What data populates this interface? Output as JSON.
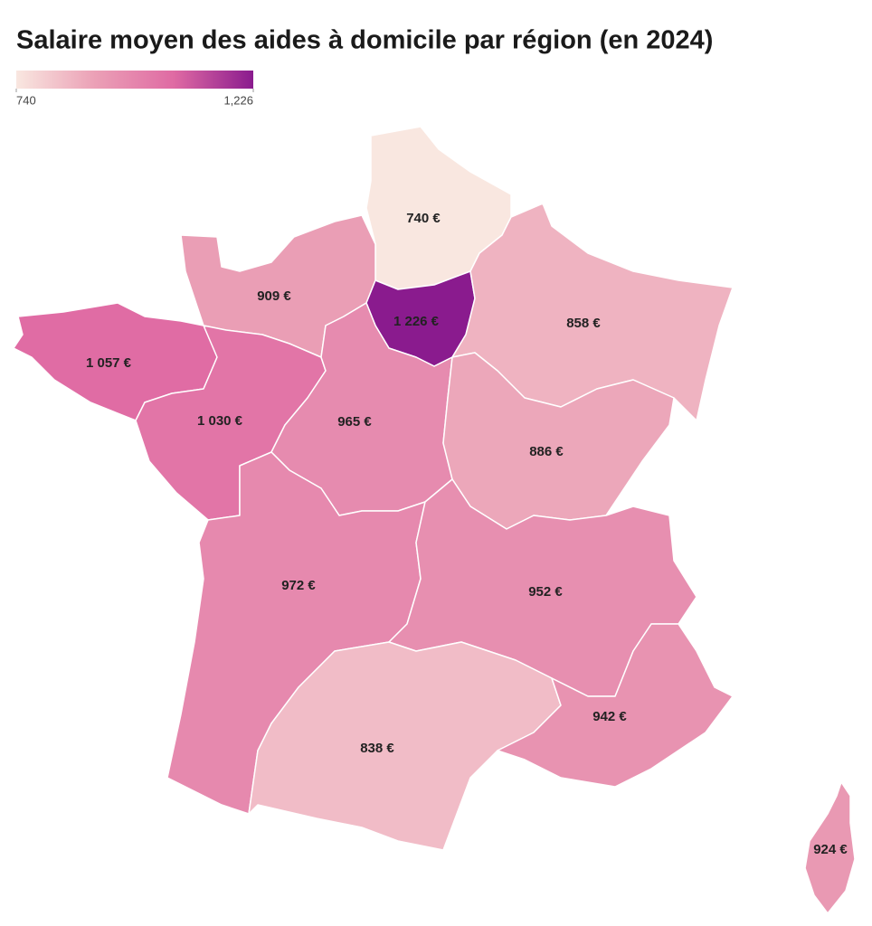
{
  "chart_data": {
    "type": "choropleth",
    "title": "Salaire moyen des aides à domicile par région (en 2024)",
    "colors": [
      "#f9e7e0",
      "#eba0b6",
      "#df6aa3",
      "#8a1b8e"
    ],
    "legend_range": [
      740,
      1226
    ],
    "legend_ticks": [
      740,
      {
        "value": 1226,
        "label": "1,226"
      }
    ],
    "values": [
      740,
      909,
      1226,
      858,
      1057,
      1030,
      965,
      886,
      972,
      952,
      838,
      942,
      924
    ],
    "value_labels": [
      "740 €",
      "909 €",
      "1 226 €",
      "858 €",
      "1 057 €",
      "1 030 €",
      "965 €",
      "886 €",
      "972 €",
      "952 €",
      "838 €",
      "942 €",
      "924 €"
    ]
  }
}
